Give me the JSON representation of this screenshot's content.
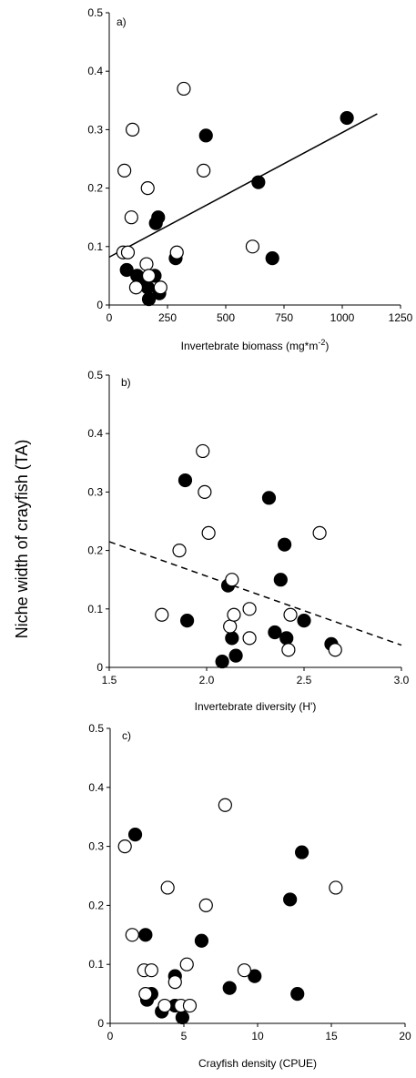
{
  "figure": {
    "ylabel": "Niche width of crayfish (TA)"
  },
  "chart_data": [
    {
      "type": "scatter",
      "panel_label": "a)",
      "xlabel_main": "Invertebrate biomass (mg*m",
      "xlabel_sup": "-2",
      "xlabel_tail": ")",
      "xlim": [
        0,
        1250
      ],
      "ylim": [
        0,
        0.5
      ],
      "xticks": [
        "0",
        "250",
        "500",
        "750",
        "1000",
        "1250"
      ],
      "yticks": [
        "0",
        "0.1",
        "0.2",
        "0.3",
        "0.4",
        "0.5"
      ],
      "grid": false,
      "trend": {
        "style": "solid",
        "x": [
          0,
          1150
        ],
        "y": [
          0.082,
          0.327
        ]
      },
      "series": [
        {
          "marker": "filled",
          "points": [
            [
              75,
              0.06
            ],
            [
              120,
              0.05
            ],
            [
              150,
              0.04
            ],
            [
              165,
              0.03
            ],
            [
              170,
              0.01
            ],
            [
              195,
              0.05
            ],
            [
              200,
              0.14
            ],
            [
              210,
              0.15
            ],
            [
              215,
              0.02
            ],
            [
              285,
              0.08
            ],
            [
              415,
              0.29
            ],
            [
              640,
              0.21
            ],
            [
              700,
              0.08
            ],
            [
              1020,
              0.32
            ]
          ]
        },
        {
          "marker": "open",
          "points": [
            [
              60,
              0.09
            ],
            [
              65,
              0.23
            ],
            [
              80,
              0.09
            ],
            [
              95,
              0.15
            ],
            [
              100,
              0.3
            ],
            [
              115,
              0.03
            ],
            [
              160,
              0.07
            ],
            [
              165,
              0.2
            ],
            [
              170,
              0.05
            ],
            [
              220,
              0.03
            ],
            [
              290,
              0.09
            ],
            [
              320,
              0.37
            ],
            [
              405,
              0.23
            ],
            [
              615,
              0.1
            ]
          ]
        }
      ]
    },
    {
      "type": "scatter",
      "panel_label": "b)",
      "xlabel": "Invertebrate diversity (H')",
      "xlim": [
        1.5,
        3.0
      ],
      "ylim": [
        0,
        0.5
      ],
      "xticks": [
        "1.5",
        "2.0",
        "2.5",
        "3.0"
      ],
      "yticks": [
        "0",
        "0.1",
        "0.2",
        "0.3",
        "0.4",
        "0.5"
      ],
      "grid": false,
      "trend": {
        "style": "dashed",
        "x": [
          1.5,
          3.0
        ],
        "y": [
          0.215,
          0.038
        ]
      },
      "series": [
        {
          "marker": "filled",
          "points": [
            [
              1.89,
              0.32
            ],
            [
              1.9,
              0.08
            ],
            [
              2.08,
              0.01
            ],
            [
              2.11,
              0.14
            ],
            [
              2.13,
              0.05
            ],
            [
              2.15,
              0.02
            ],
            [
              2.32,
              0.29
            ],
            [
              2.35,
              0.06
            ],
            [
              2.38,
              0.15
            ],
            [
              2.4,
              0.21
            ],
            [
              2.41,
              0.05
            ],
            [
              2.5,
              0.08
            ],
            [
              2.64,
              0.04
            ]
          ]
        },
        {
          "marker": "open",
          "points": [
            [
              1.77,
              0.09
            ],
            [
              1.86,
              0.2
            ],
            [
              1.98,
              0.37
            ],
            [
              1.99,
              0.3
            ],
            [
              2.01,
              0.23
            ],
            [
              2.12,
              0.07
            ],
            [
              2.13,
              0.15
            ],
            [
              2.14,
              0.09
            ],
            [
              2.22,
              0.1
            ],
            [
              2.22,
              0.05
            ],
            [
              2.42,
              0.03
            ],
            [
              2.43,
              0.09
            ],
            [
              2.58,
              0.23
            ],
            [
              2.66,
              0.03
            ]
          ]
        }
      ]
    },
    {
      "type": "scatter",
      "panel_label": "c)",
      "xlabel": "Crayfish density (CPUE)",
      "xlim": [
        0,
        20
      ],
      "ylim": [
        0,
        0.5
      ],
      "xticks": [
        "0",
        "5",
        "10",
        "15",
        "20"
      ],
      "yticks": [
        "0",
        "0.1",
        "0.2",
        "0.3",
        "0.4",
        "0.5"
      ],
      "grid": false,
      "series": [
        {
          "marker": "filled",
          "points": [
            [
              1.7,
              0.32
            ],
            [
              2.4,
              0.15
            ],
            [
              2.5,
              0.04
            ],
            [
              2.8,
              0.05
            ],
            [
              3.5,
              0.02
            ],
            [
              4.4,
              0.03
            ],
            [
              4.4,
              0.08
            ],
            [
              4.9,
              0.01
            ],
            [
              6.2,
              0.14
            ],
            [
              8.1,
              0.06
            ],
            [
              9.8,
              0.08
            ],
            [
              12.2,
              0.21
            ],
            [
              12.7,
              0.05
            ],
            [
              13.0,
              0.29
            ]
          ]
        },
        {
          "marker": "open",
          "points": [
            [
              1.0,
              0.3
            ],
            [
              1.5,
              0.15
            ],
            [
              2.3,
              0.09
            ],
            [
              2.4,
              0.05
            ],
            [
              2.8,
              0.09
            ],
            [
              3.7,
              0.03
            ],
            [
              3.9,
              0.23
            ],
            [
              4.4,
              0.07
            ],
            [
              4.8,
              0.03
            ],
            [
              5.2,
              0.1
            ],
            [
              5.4,
              0.03
            ],
            [
              6.5,
              0.2
            ],
            [
              7.8,
              0.37
            ],
            [
              9.1,
              0.09
            ],
            [
              15.3,
              0.23
            ]
          ]
        }
      ]
    }
  ]
}
